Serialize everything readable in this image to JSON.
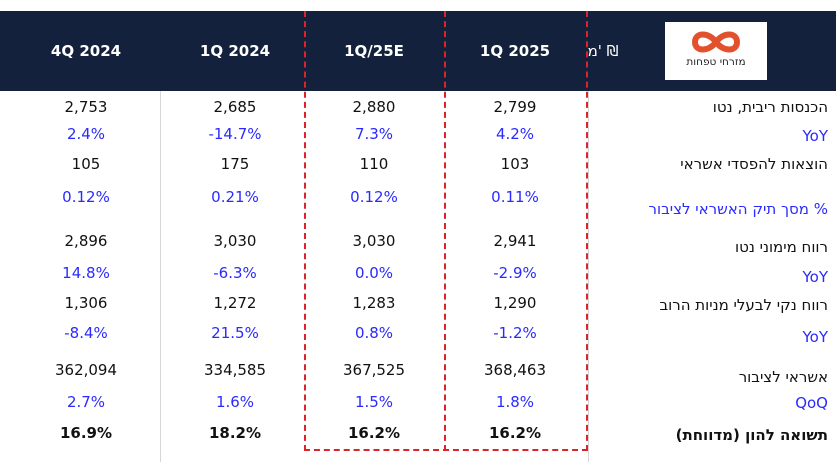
{
  "header": {
    "unit_label": "מ' ₪",
    "columns": [
      "4Q 2024",
      "1Q 2024",
      "1Q/25E",
      "1Q 2025"
    ]
  },
  "logo": {
    "text": "מזרחי טפחות",
    "mark_color": "#e2512b"
  },
  "colors": {
    "header_bg": "#14213d",
    "percent_blue": "#2a2aff",
    "highlight_dash": "#d9242a"
  },
  "rows": [
    {
      "label": "הכנסות ריבית, נטו",
      "values": [
        "2,753",
        "2,685",
        "2,880",
        "2,799"
      ]
    },
    {
      "label": "YoY",
      "values": [
        "2.4%",
        "-14.7%",
        "7.3%",
        "4.2%"
      ]
    },
    {
      "label": "הוצאות להפסדי אשראי",
      "values": [
        "105",
        "175",
        "110",
        "103"
      ]
    },
    {
      "label": "% מסך תיק האשראי לציבור",
      "values": [
        "0.12%",
        "0.21%",
        "0.12%",
        "0.11%"
      ]
    },
    {
      "label": "רווח מימוני נטו",
      "values": [
        "2,896",
        "3,030",
        "3,030",
        "2,941"
      ]
    },
    {
      "label": "YoY",
      "values": [
        "14.8%",
        "-6.3%",
        "0.0%",
        "-2.9%"
      ]
    },
    {
      "label": "רווח נקי לבעלי מניות הרוב",
      "values": [
        "1,306",
        "1,272",
        "1,283",
        "1,290"
      ]
    },
    {
      "label": "YoY",
      "values": [
        "-8.4%",
        "21.5%",
        "0.8%",
        "-1.2%"
      ]
    },
    {
      "label": "אשראי לציבור",
      "values": [
        "362,094",
        "334,585",
        "367,525",
        "368,463"
      ]
    },
    {
      "label": "QoQ",
      "values": [
        "2.7%",
        "1.6%",
        "1.5%",
        "1.8%"
      ]
    },
    {
      "label": "תשואה להון (מדווחת)",
      "values": [
        "16.9%",
        "18.2%",
        "16.2%",
        "16.2%"
      ]
    }
  ]
}
